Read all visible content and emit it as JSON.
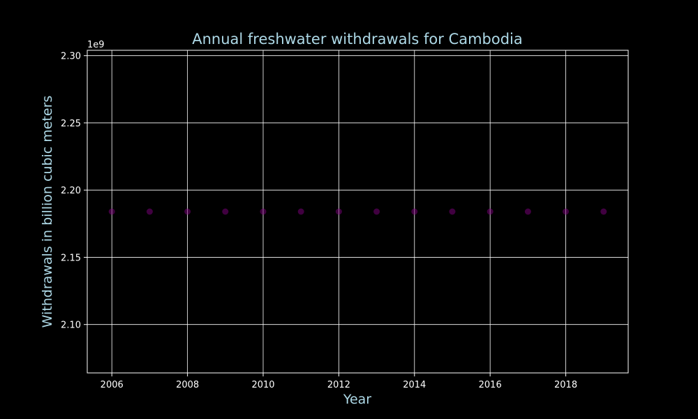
{
  "chart_data": {
    "type": "scatter",
    "title": "Annual freshwater withdrawals for Cambodia",
    "xlabel": "Year",
    "ylabel": "Withdrawals in billion cubic meters",
    "y_offset_label": "1e9",
    "x": [
      2006,
      2007,
      2008,
      2009,
      2010,
      2011,
      2012,
      2013,
      2014,
      2015,
      2016,
      2017,
      2018,
      2019
    ],
    "y": [
      2184000000,
      2184000000,
      2184000000,
      2184000000,
      2184000000,
      2184000000,
      2184000000,
      2184000000,
      2184000000,
      2184000000,
      2184000000,
      2184000000,
      2184000000,
      2184000000
    ],
    "xlim": [
      2005.35,
      2019.65
    ],
    "ylim": [
      2064000000,
      2304000000
    ],
    "x_ticks": [
      2006,
      2008,
      2010,
      2012,
      2014,
      2016,
      2018
    ],
    "x_tick_labels": [
      "2006",
      "2008",
      "2010",
      "2012",
      "2014",
      "2016",
      "2018"
    ],
    "y_ticks": [
      2100000000,
      2150000000,
      2200000000,
      2250000000,
      2300000000
    ],
    "y_tick_labels": [
      "2.10",
      "2.15",
      "2.20",
      "2.25",
      "2.30"
    ],
    "grid": true,
    "legend": "none",
    "colors": {
      "background": "#000000",
      "axes": "#ffffff",
      "grid": "#ffffff",
      "text": "#add8e6",
      "tick_text": "#ffffff",
      "marker": "#800080"
    }
  }
}
